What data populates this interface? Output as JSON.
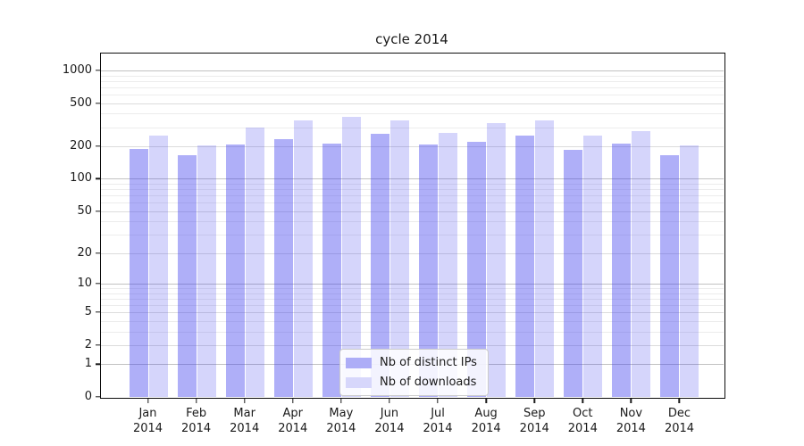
{
  "title": "cycle 2014",
  "legend": {
    "items": [
      {
        "label": "Nb of distinct IPs",
        "color": "#adadf7"
      },
      {
        "label": "Nb of downloads",
        "color": "#d7d7fb"
      }
    ]
  },
  "chart_data": {
    "type": "bar",
    "title": "cycle 2014",
    "categories": [
      "Jan 2014",
      "Feb 2014",
      "Mar 2014",
      "Apr 2014",
      "May 2014",
      "Jun 2014",
      "Jul 2014",
      "Aug 2014",
      "Sep 2014",
      "Oct 2014",
      "Nov 2014",
      "Dec 2014"
    ],
    "x_tick_lines": [
      [
        "Jan",
        "2014"
      ],
      [
        "Feb",
        "2014"
      ],
      [
        "Mar",
        "2014"
      ],
      [
        "Apr",
        "2014"
      ],
      [
        "May",
        "2014"
      ],
      [
        "Jun",
        "2014"
      ],
      [
        "Jul",
        "2014"
      ],
      [
        "Aug",
        "2014"
      ],
      [
        "Sep",
        "2014"
      ],
      [
        "Oct",
        "2014"
      ],
      [
        "Nov",
        "2014"
      ],
      [
        "Dec",
        "2014"
      ]
    ],
    "series": [
      {
        "name": "Nb of distinct IPs",
        "color": "rgba(64,64,238,0.42)",
        "legend_color": "#adadf7",
        "values": [
          190,
          165,
          206,
          234,
          213,
          260,
          207,
          219,
          249,
          187,
          210,
          167
        ]
      },
      {
        "name": "Nb of downloads",
        "color": "rgba(64,64,238,0.22)",
        "legend_color": "#d7d7fb",
        "values": [
          253,
          205,
          296,
          347,
          376,
          349,
          265,
          329,
          347,
          252,
          275,
          204
        ]
      }
    ],
    "xlabel": "",
    "ylabel": "",
    "yscale": "log1p",
    "ylim": [
      0,
      1430
    ],
    "yticks": [
      0,
      1,
      2,
      5,
      10,
      20,
      50,
      100,
      200,
      500,
      1000
    ],
    "minor_gridlines": [
      3,
      4,
      6,
      7,
      8,
      9,
      30,
      40,
      60,
      70,
      80,
      90,
      300,
      400,
      600,
      700,
      800,
      900
    ],
    "grid": "on",
    "grid_colors": {
      "decade": "#c2c2c2",
      "labeled": "#dcdcdc",
      "minor": "#ececec"
    },
    "legend_position": "lower center"
  }
}
